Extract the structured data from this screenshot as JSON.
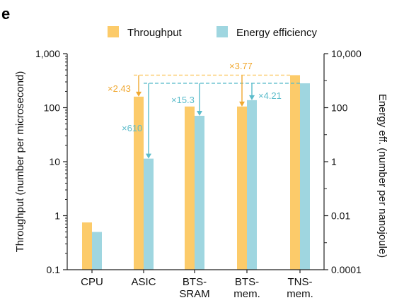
{
  "panel_label": "e",
  "colors": {
    "throughput": "#FCCB6A",
    "energy": "#9FD6E0",
    "throughput_annotation": "#F0A830",
    "energy_annotation": "#5BBCCB",
    "axis": "#222222"
  },
  "chart_data": {
    "type": "bar",
    "title": "",
    "categories": [
      [
        "CPU"
      ],
      [
        "ASIC"
      ],
      [
        "BTS-",
        "SRAM"
      ],
      [
        "BTS-",
        "mem."
      ],
      [
        "TNS-",
        "mem."
      ]
    ],
    "series": [
      {
        "name": "Throughput",
        "axis": "left",
        "values": [
          0.75,
          160,
          105,
          105,
          400
        ]
      },
      {
        "name": "Energy efficiency",
        "axis": "right",
        "values": [
          0.0025,
          1.3,
          50,
          190,
          800
        ]
      }
    ],
    "left_axis": {
      "label": "Throughput (number per microsecond)",
      "scale": "log",
      "range": [
        0.1,
        1000
      ],
      "ticks": [
        0.1,
        1,
        10,
        100,
        1000
      ],
      "tick_labels": [
        "0.1",
        "1",
        "10",
        "100",
        "1,000"
      ]
    },
    "right_axis": {
      "label": "Energy eff. (number per nanojoule)",
      "scale": "log",
      "range": [
        0.0001,
        10000
      ],
      "ticks": [
        0.0001,
        0.01,
        1,
        100,
        10000
      ],
      "tick_labels": [
        "0.0001",
        "0.01",
        "1",
        "100",
        "10,000"
      ]
    },
    "legend": {
      "placement": "top"
    },
    "grid": false,
    "annotations": [
      {
        "text": "×2.43",
        "series": "Throughput",
        "from_category": 1,
        "to_category": 4
      },
      {
        "text": "×610",
        "series": "Energy efficiency",
        "from_category": 1,
        "to_category": 4
      },
      {
        "text": "×15.3",
        "series": "Energy efficiency",
        "from_category": 2,
        "to_category": 4
      },
      {
        "text": "×3.77",
        "series": "Throughput",
        "from_category": 3,
        "to_category": 4
      },
      {
        "text": "×4.21",
        "series": "Energy efficiency",
        "from_category": 3,
        "to_category": 4
      }
    ]
  }
}
